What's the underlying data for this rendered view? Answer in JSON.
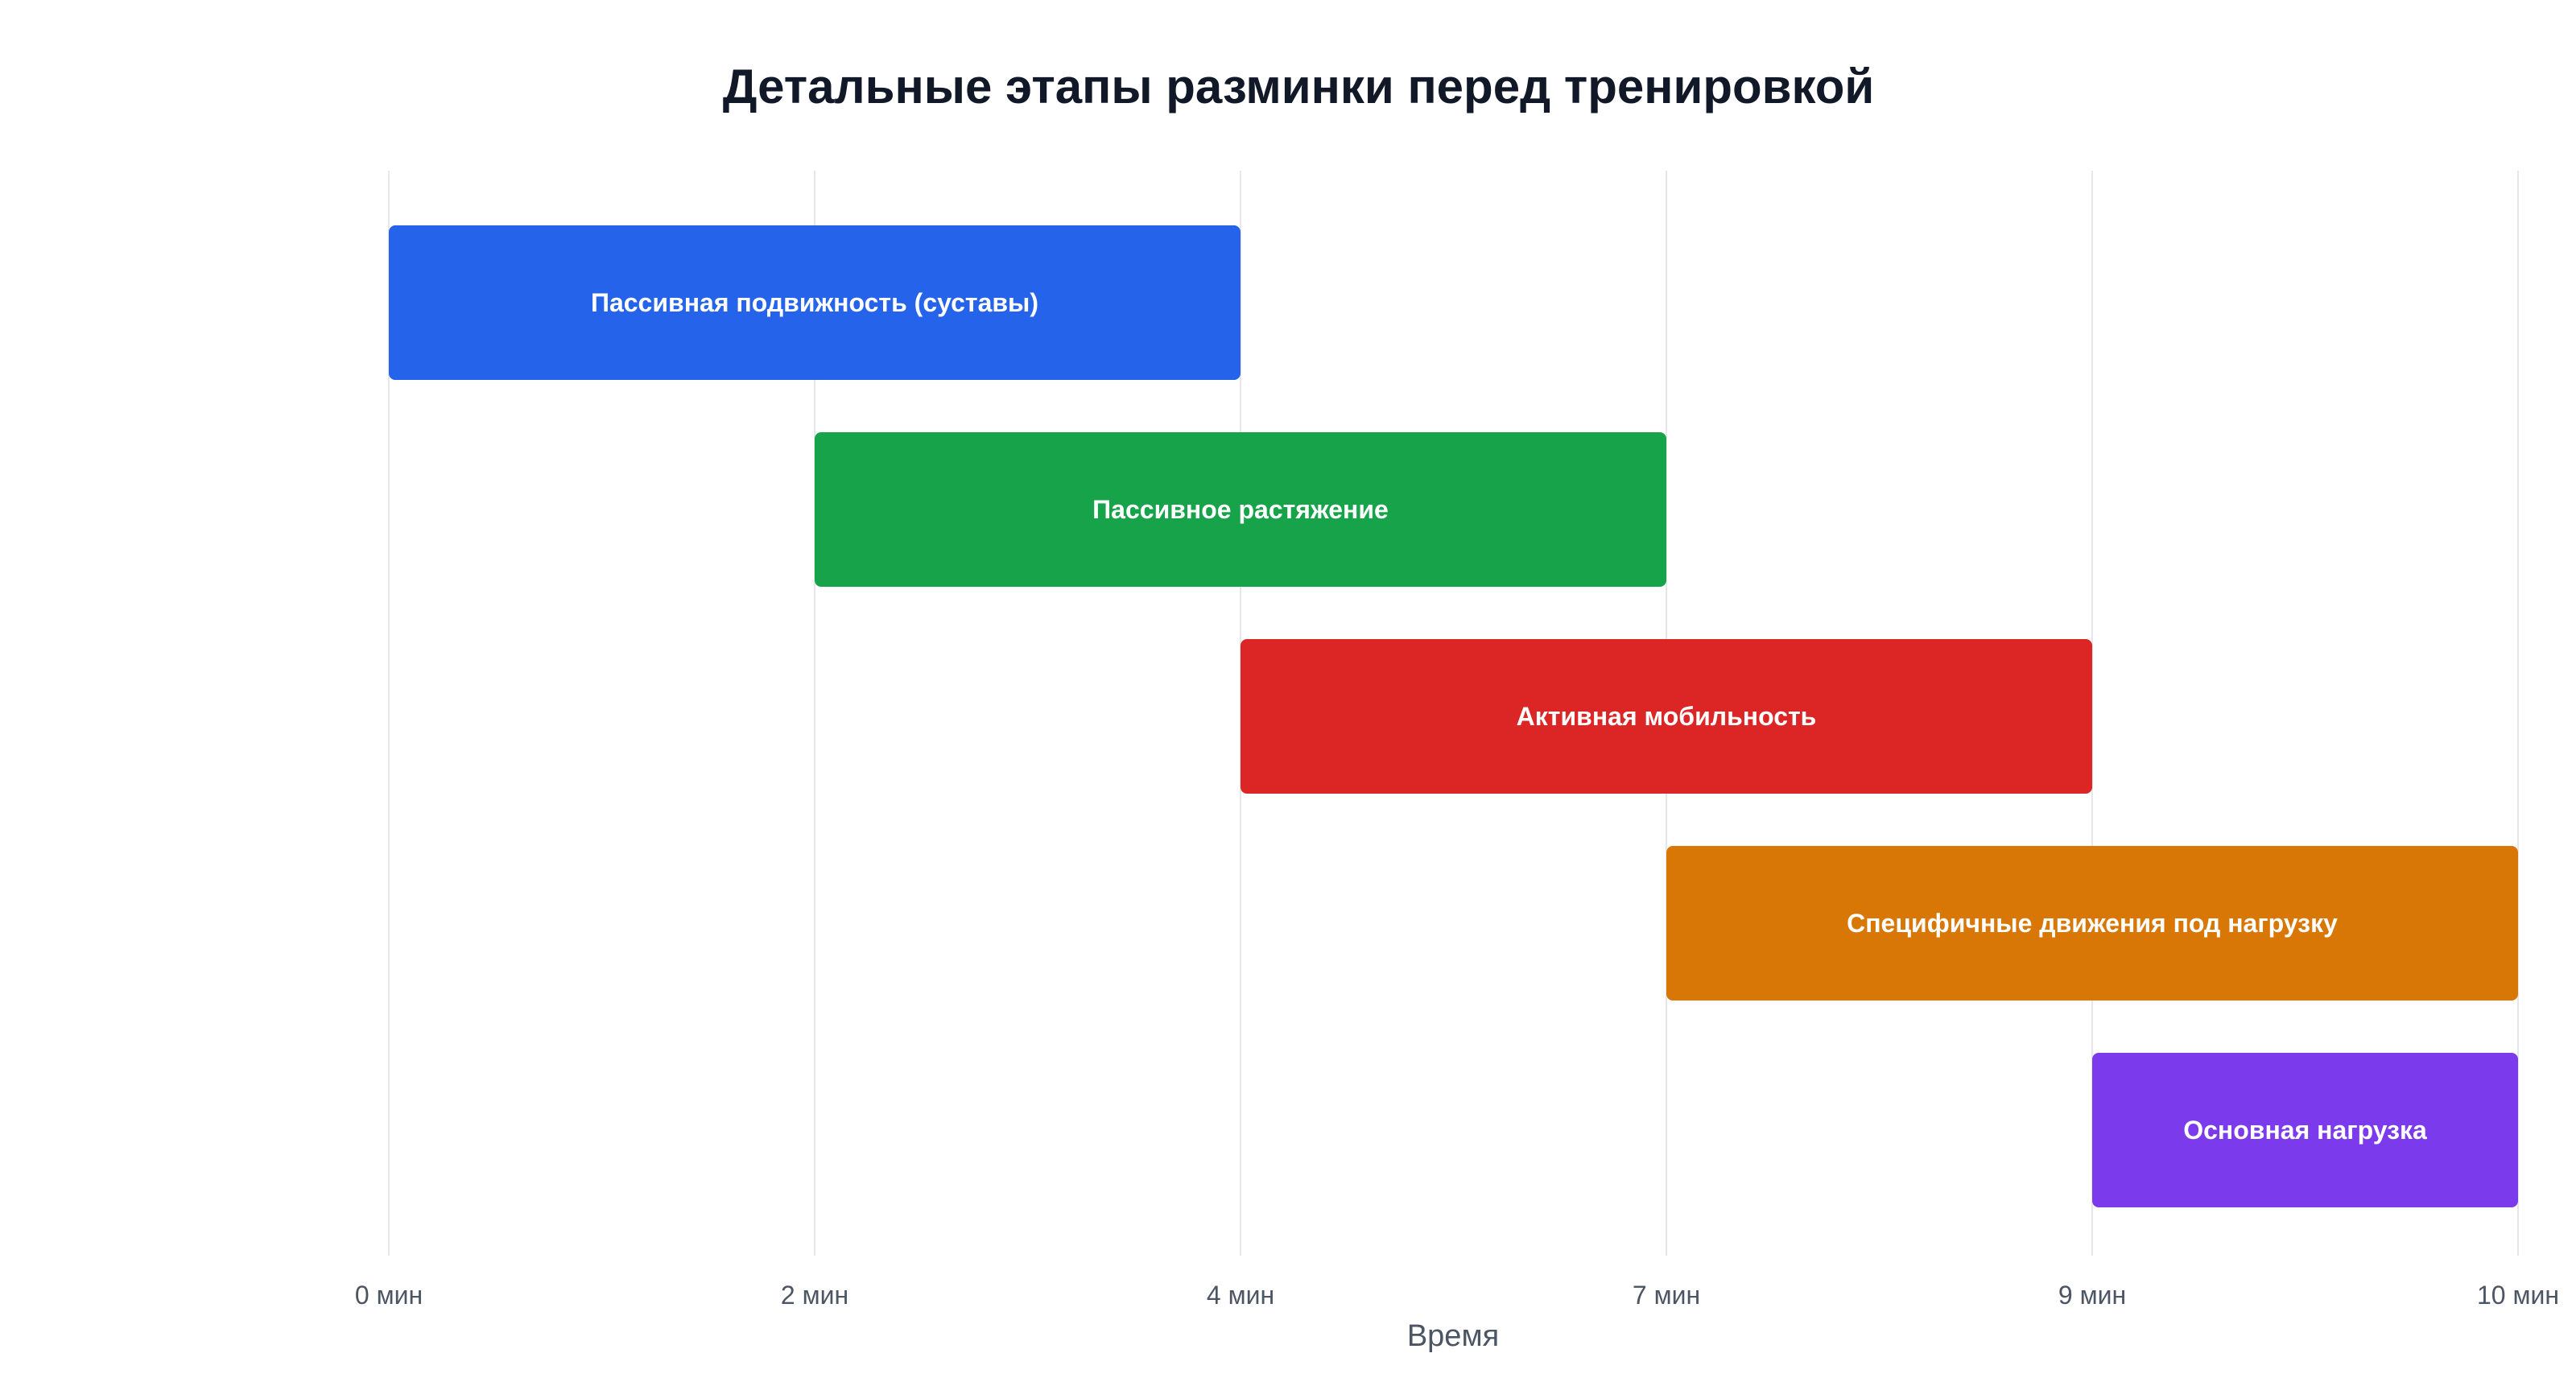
{
  "chart_data": {
    "type": "gantt",
    "title": "Детальные этапы разминки перед тренировкой",
    "xlabel": "Время",
    "ylabel": "",
    "x_ticks": [
      {
        "value": 0,
        "label": "0 мин"
      },
      {
        "value": 2,
        "label": "2 мин"
      },
      {
        "value": 4,
        "label": "4 мин"
      },
      {
        "value": 7,
        "label": "7 мин"
      },
      {
        "value": 9,
        "label": "9 мин"
      },
      {
        "value": 10,
        "label": "10 мин"
      }
    ],
    "xlim": [
      0,
      10
    ],
    "x_units": "мин",
    "grid": true,
    "legend": "none",
    "tasks": [
      {
        "label": "Пассивная подвижность (суставы)",
        "start": 0,
        "end": 4,
        "color": "#2563eb"
      },
      {
        "label": "Пассивное растяжение",
        "start": 2,
        "end": 7,
        "color": "#16a34a"
      },
      {
        "label": "Активная мобильность",
        "start": 4,
        "end": 9,
        "color": "#dc2626"
      },
      {
        "label": "Специфичные движения под нагрузку",
        "start": 7,
        "end": 10,
        "color": "#d97706"
      },
      {
        "label": "Основная нагрузка",
        "start": 9,
        "end": 10,
        "color": "#7c3aed"
      }
    ]
  }
}
